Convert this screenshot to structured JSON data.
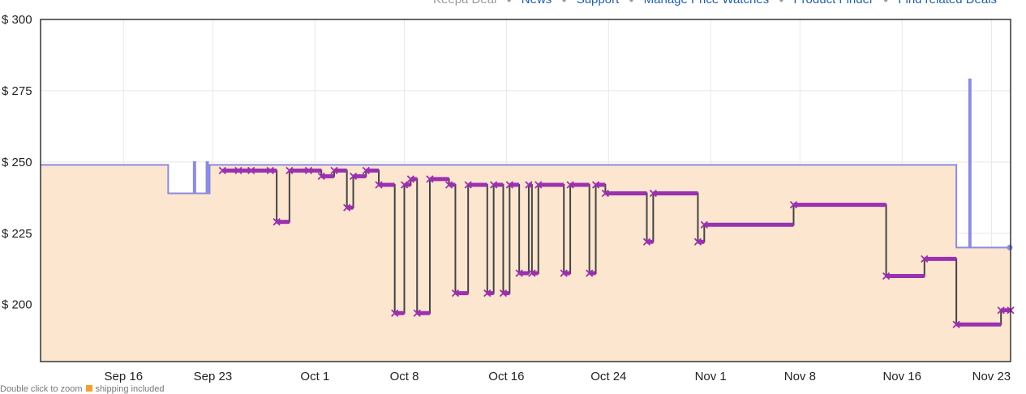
{
  "nav": {
    "items": [
      "Keepa Deal",
      "News",
      "Support",
      "Manage Price Watches",
      "Product Finder",
      "Find related Deals"
    ]
  },
  "note": {
    "text_before": "Double click to zoom",
    "text_after": "shipping included"
  },
  "colors": {
    "amazon_line": "#8b8be0",
    "amazon_fill": "#fde6cf",
    "new_line": "#444444",
    "new_marker": "#9b30b0",
    "grid": "#e8e8e8",
    "frame": "#333333"
  },
  "chart_data": {
    "type": "line",
    "title": "",
    "xlabel": "",
    "ylabel": "",
    "x_axis": {
      "type": "date",
      "ticks": [
        {
          "date": "2024-09-16",
          "label": "Sep 16"
        },
        {
          "date": "2024-09-23",
          "label": "Sep 23"
        },
        {
          "date": "2024-10-01",
          "label": "Oct 1"
        },
        {
          "date": "2024-10-08",
          "label": "Oct 8"
        },
        {
          "date": "2024-10-16",
          "label": "Oct 16"
        },
        {
          "date": "2024-10-24",
          "label": "Oct 24"
        },
        {
          "date": "2024-11-01",
          "label": "Nov 1"
        },
        {
          "date": "2024-11-08",
          "label": "Nov 8"
        },
        {
          "date": "2024-11-16",
          "label": "Nov 16"
        },
        {
          "date": "2024-11-23",
          "label": "Nov 23"
        }
      ],
      "range": [
        "2024-09-09T12:00",
        "2024-11-24T12:00"
      ]
    },
    "y_axis": {
      "ticks": [
        200,
        225,
        250,
        275,
        300
      ],
      "tick_labels": [
        "$ 200",
        "$ 225",
        "$ 250",
        "$ 275",
        "$ 300"
      ],
      "ylim": [
        180,
        300
      ]
    },
    "grid": true,
    "series": [
      {
        "key": "amazon",
        "style": "step-area",
        "points": [
          [
            "2024-09-09T12:00",
            249
          ],
          [
            "2024-09-19T12:00",
            239
          ],
          [
            "2024-09-21T12:00",
            250
          ],
          [
            "2024-09-21T15:00",
            239
          ],
          [
            "2024-09-22T12:00",
            250
          ],
          [
            "2024-09-22T15:00",
            239
          ],
          [
            "2024-09-22T18:00",
            249
          ],
          [
            "2024-11-20T06:00",
            220
          ],
          [
            "2024-11-21T06:00",
            279
          ],
          [
            "2024-11-21T09:00",
            220
          ],
          [
            "2024-11-24T12:00",
            220
          ]
        ]
      },
      {
        "key": "new",
        "style": "step-markers",
        "points": [
          [
            "2024-09-23T18:00",
            247
          ],
          [
            "2024-09-25T00:00",
            247
          ],
          [
            "2024-09-26T00:00",
            247
          ],
          [
            "2024-09-27T12:00",
            247
          ],
          [
            "2024-09-28T00:00",
            229
          ],
          [
            "2024-09-29T00:00",
            247
          ],
          [
            "2024-09-30T12:00",
            247
          ],
          [
            "2024-10-01T12:00",
            245
          ],
          [
            "2024-10-02T12:00",
            247
          ],
          [
            "2024-10-03T12:00",
            234
          ],
          [
            "2024-10-04T00:00",
            245
          ],
          [
            "2024-10-05T00:00",
            247
          ],
          [
            "2024-10-06T00:00",
            242
          ],
          [
            "2024-10-07T06:00",
            197
          ],
          [
            "2024-10-08T00:00",
            242
          ],
          [
            "2024-10-08T12:00",
            244
          ],
          [
            "2024-10-09T00:00",
            197
          ],
          [
            "2024-10-10T00:00",
            244
          ],
          [
            "2024-10-11T12:00",
            242
          ],
          [
            "2024-10-12T00:00",
            204
          ],
          [
            "2024-10-13T00:00",
            242
          ],
          [
            "2024-10-14T12:00",
            204
          ],
          [
            "2024-10-15T00:00",
            242
          ],
          [
            "2024-10-15T18:00",
            204
          ],
          [
            "2024-10-16T06:00",
            242
          ],
          [
            "2024-10-17T00:00",
            211
          ],
          [
            "2024-10-17T18:00",
            242
          ],
          [
            "2024-10-18T00:00",
            211
          ],
          [
            "2024-10-18T12:00",
            242
          ],
          [
            "2024-10-20T12:00",
            211
          ],
          [
            "2024-10-21T00:00",
            242
          ],
          [
            "2024-10-22T12:00",
            211
          ],
          [
            "2024-10-23T00:00",
            242
          ],
          [
            "2024-10-23T18:00",
            239
          ],
          [
            "2024-10-27T00:00",
            222
          ],
          [
            "2024-10-27T12:00",
            239
          ],
          [
            "2024-10-31T00:00",
            222
          ],
          [
            "2024-10-31T12:00",
            228
          ],
          [
            "2024-11-07T12:00",
            235
          ],
          [
            "2024-11-14T18:00",
            210
          ],
          [
            "2024-11-17T18:00",
            216
          ],
          [
            "2024-11-20T06:00",
            193
          ],
          [
            "2024-11-23T18:00",
            198
          ],
          [
            "2024-11-24T12:00",
            198
          ]
        ]
      }
    ]
  }
}
